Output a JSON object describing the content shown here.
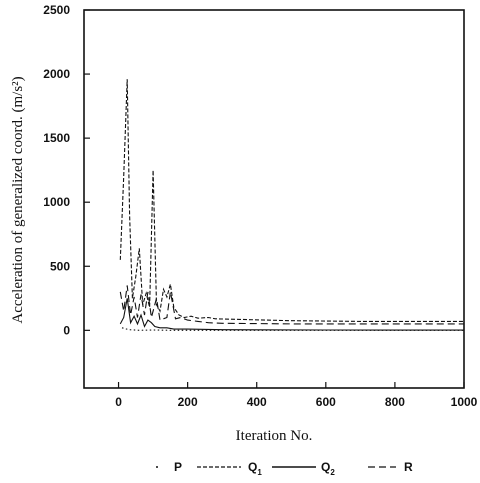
{
  "chart_data": {
    "type": "line",
    "xlabel": "Iteration No.",
    "ylabel": "Acceleration of generalized coord. (m/s²)",
    "xlim": [
      -100,
      1000
    ],
    "ylim": [
      -450,
      2500
    ],
    "xticks": [
      0,
      200,
      400,
      600,
      800,
      1000
    ],
    "yticks": [
      0,
      500,
      1000,
      1500,
      2000,
      2500
    ],
    "grid": false,
    "legend_position": "bottom",
    "series": [
      {
        "name": "P",
        "style": "dotted",
        "points": [
          [
            10,
            20
          ],
          [
            30,
            5
          ],
          [
            60,
            0
          ],
          [
            100,
            3
          ],
          [
            150,
            0
          ],
          [
            300,
            0
          ],
          [
            600,
            0
          ],
          [
            1000,
            0
          ]
        ]
      },
      {
        "name": "Q1",
        "style": "short-dash",
        "points": [
          [
            5,
            550
          ],
          [
            15,
            1200
          ],
          [
            25,
            1960
          ],
          [
            32,
            900
          ],
          [
            40,
            250
          ],
          [
            50,
            420
          ],
          [
            60,
            640
          ],
          [
            70,
            200
          ],
          [
            80,
            290
          ],
          [
            90,
            180
          ],
          [
            100,
            1250
          ],
          [
            110,
            200
          ],
          [
            120,
            150
          ],
          [
            130,
            320
          ],
          [
            140,
            260
          ],
          [
            150,
            360
          ],
          [
            160,
            180
          ],
          [
            175,
            120
          ],
          [
            190,
            100
          ],
          [
            210,
            110
          ],
          [
            230,
            95
          ],
          [
            260,
            100
          ],
          [
            280,
            90
          ],
          [
            350,
            85
          ],
          [
            500,
            75
          ],
          [
            700,
            70
          ],
          [
            1000,
            70
          ]
        ]
      },
      {
        "name": "Q2",
        "style": "solid",
        "points": [
          [
            5,
            50
          ],
          [
            15,
            100
          ],
          [
            25,
            250
          ],
          [
            35,
            60
          ],
          [
            45,
            110
          ],
          [
            55,
            50
          ],
          [
            65,
            120
          ],
          [
            75,
            30
          ],
          [
            85,
            80
          ],
          [
            95,
            60
          ],
          [
            105,
            30
          ],
          [
            120,
            20
          ],
          [
            140,
            20
          ],
          [
            160,
            10
          ],
          [
            200,
            10
          ],
          [
            300,
            5
          ],
          [
            600,
            3
          ],
          [
            1000,
            2
          ]
        ]
      },
      {
        "name": "R",
        "style": "long-dash",
        "points": [
          [
            5,
            300
          ],
          [
            15,
            150
          ],
          [
            25,
            350
          ],
          [
            35,
            120
          ],
          [
            45,
            260
          ],
          [
            55,
            100
          ],
          [
            65,
            280
          ],
          [
            75,
            120
          ],
          [
            85,
            300
          ],
          [
            95,
            100
          ],
          [
            110,
            250
          ],
          [
            120,
            80
          ],
          [
            140,
            100
          ],
          [
            150,
            300
          ],
          [
            165,
            90
          ],
          [
            180,
            100
          ],
          [
            200,
            80
          ],
          [
            230,
            70
          ],
          [
            260,
            60
          ],
          [
            300,
            55
          ],
          [
            500,
            50
          ],
          [
            700,
            50
          ],
          [
            1000,
            50
          ]
        ]
      }
    ]
  },
  "legend": {
    "items": [
      {
        "label": "P",
        "sub": ""
      },
      {
        "label": "Q",
        "sub": "1"
      },
      {
        "label": "Q",
        "sub": "2"
      },
      {
        "label": "R",
        "sub": ""
      }
    ]
  }
}
